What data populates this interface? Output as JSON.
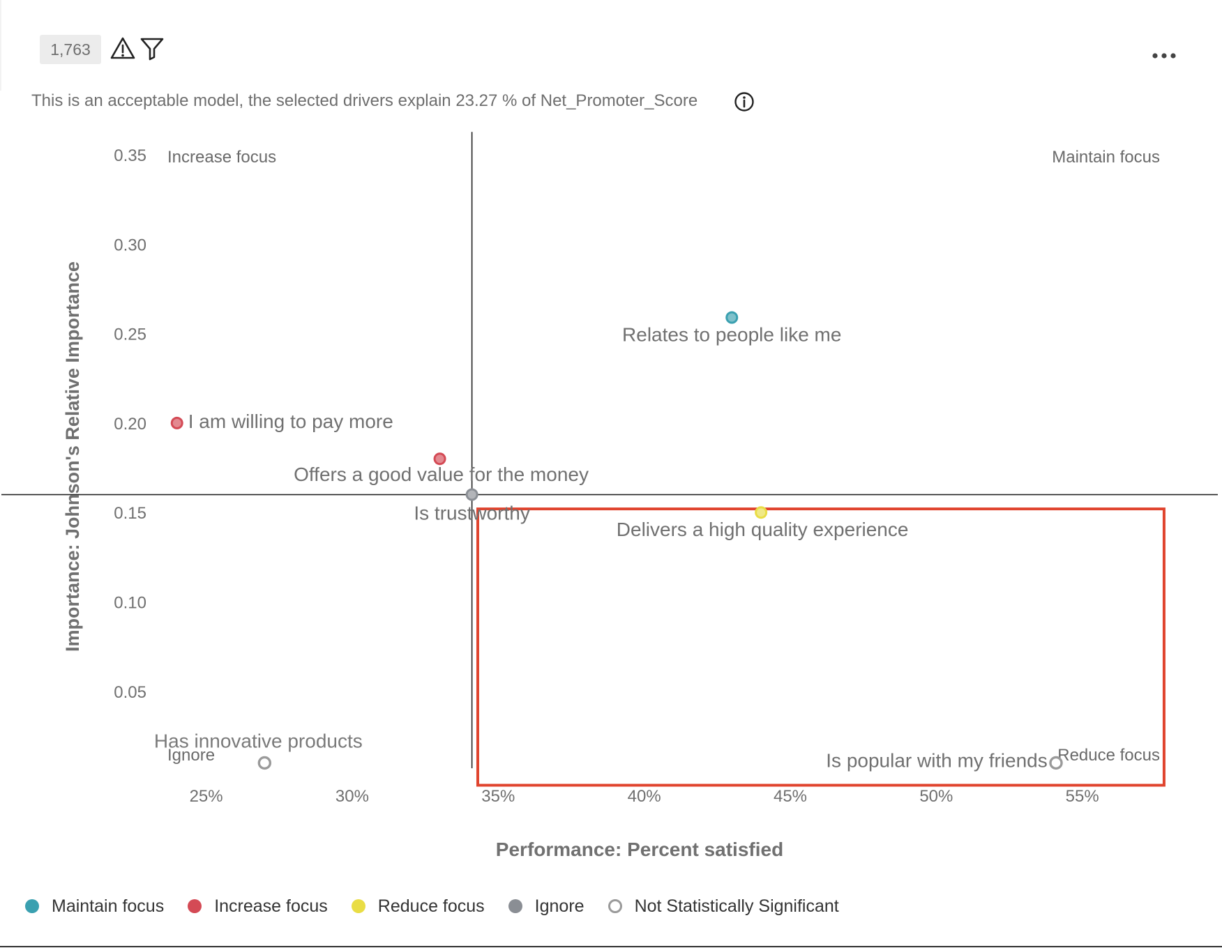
{
  "header": {
    "response_count": "1,763",
    "more_menu_label": "•••"
  },
  "model_note": "This is an acceptable model, the selected drivers explain 23.27 % of Net_Promoter_Score",
  "icons": {
    "warning": "warning-triangle-icon",
    "filter": "filter-funnel-icon",
    "info": "info-circle-icon",
    "more": "more-horizontal-icon"
  },
  "colors": {
    "maintain": "#3aa0b0",
    "increase": "#d44a55",
    "reduce": "#e9dd45",
    "ignore": "#8a8e94",
    "not_significant": "#9a9a9a",
    "highlight": "#e0442e"
  },
  "legend": [
    {
      "label": "Maintain focus",
      "key": "maintain"
    },
    {
      "label": "Increase focus",
      "key": "increase"
    },
    {
      "label": "Reduce focus",
      "key": "reduce"
    },
    {
      "label": "Ignore",
      "key": "ignore"
    },
    {
      "label": "Not Statistically Significant",
      "key": "not_significant"
    }
  ],
  "chart_data": {
    "type": "scatter",
    "xlabel": "Performance: Percent satisfied",
    "ylabel": "Importance: Johnson's Relative Importance",
    "xlim": [
      22.9,
      57.8
    ],
    "ylim": [
      0.007,
      0.362
    ],
    "x_ticks": [
      25,
      30,
      35,
      40,
      45,
      50,
      55
    ],
    "x_tick_labels": [
      "25%",
      "30%",
      "35%",
      "40%",
      "45%",
      "50%",
      "55%"
    ],
    "y_ticks": [
      0.05,
      0.1,
      0.15,
      0.2,
      0.25,
      0.3,
      0.35
    ],
    "y_tick_labels": [
      "0.05",
      "0.10",
      "0.15",
      "0.20",
      "0.25",
      "0.30",
      "0.35"
    ],
    "quadrant_dividers": {
      "x": 34.1,
      "y": 0.16
    },
    "quadrant_labels": {
      "top_left": "Increase focus",
      "top_right": "Maintain focus",
      "bottom_left": "Ignore",
      "bottom_right": "Reduce focus"
    },
    "points": [
      {
        "label": "Relates to people like me",
        "x": 43.0,
        "y": 0.259,
        "category": "maintain"
      },
      {
        "label": "I am willing to pay more",
        "x": 24.0,
        "y": 0.2,
        "category": "increase"
      },
      {
        "label": "Offers a good value for the money",
        "x": 33.0,
        "y": 0.18,
        "category": "increase"
      },
      {
        "label": "Is trustworthy",
        "x": 34.1,
        "y": 0.16,
        "category": "ignore"
      },
      {
        "label": "Delivers a high quality experience",
        "x": 44.0,
        "y": 0.15,
        "category": "reduce"
      },
      {
        "label": "Has innovative products",
        "x": 27.0,
        "y": 0.01,
        "category": "not_significant"
      },
      {
        "label": "Is popular with my friends",
        "x": 54.1,
        "y": 0.01,
        "category": "not_significant"
      }
    ],
    "grid": false,
    "legend_position": "bottom-left",
    "highlight_region": {
      "x": [
        34.3,
        57.8
      ],
      "y": [
        0.007,
        0.153
      ]
    }
  }
}
